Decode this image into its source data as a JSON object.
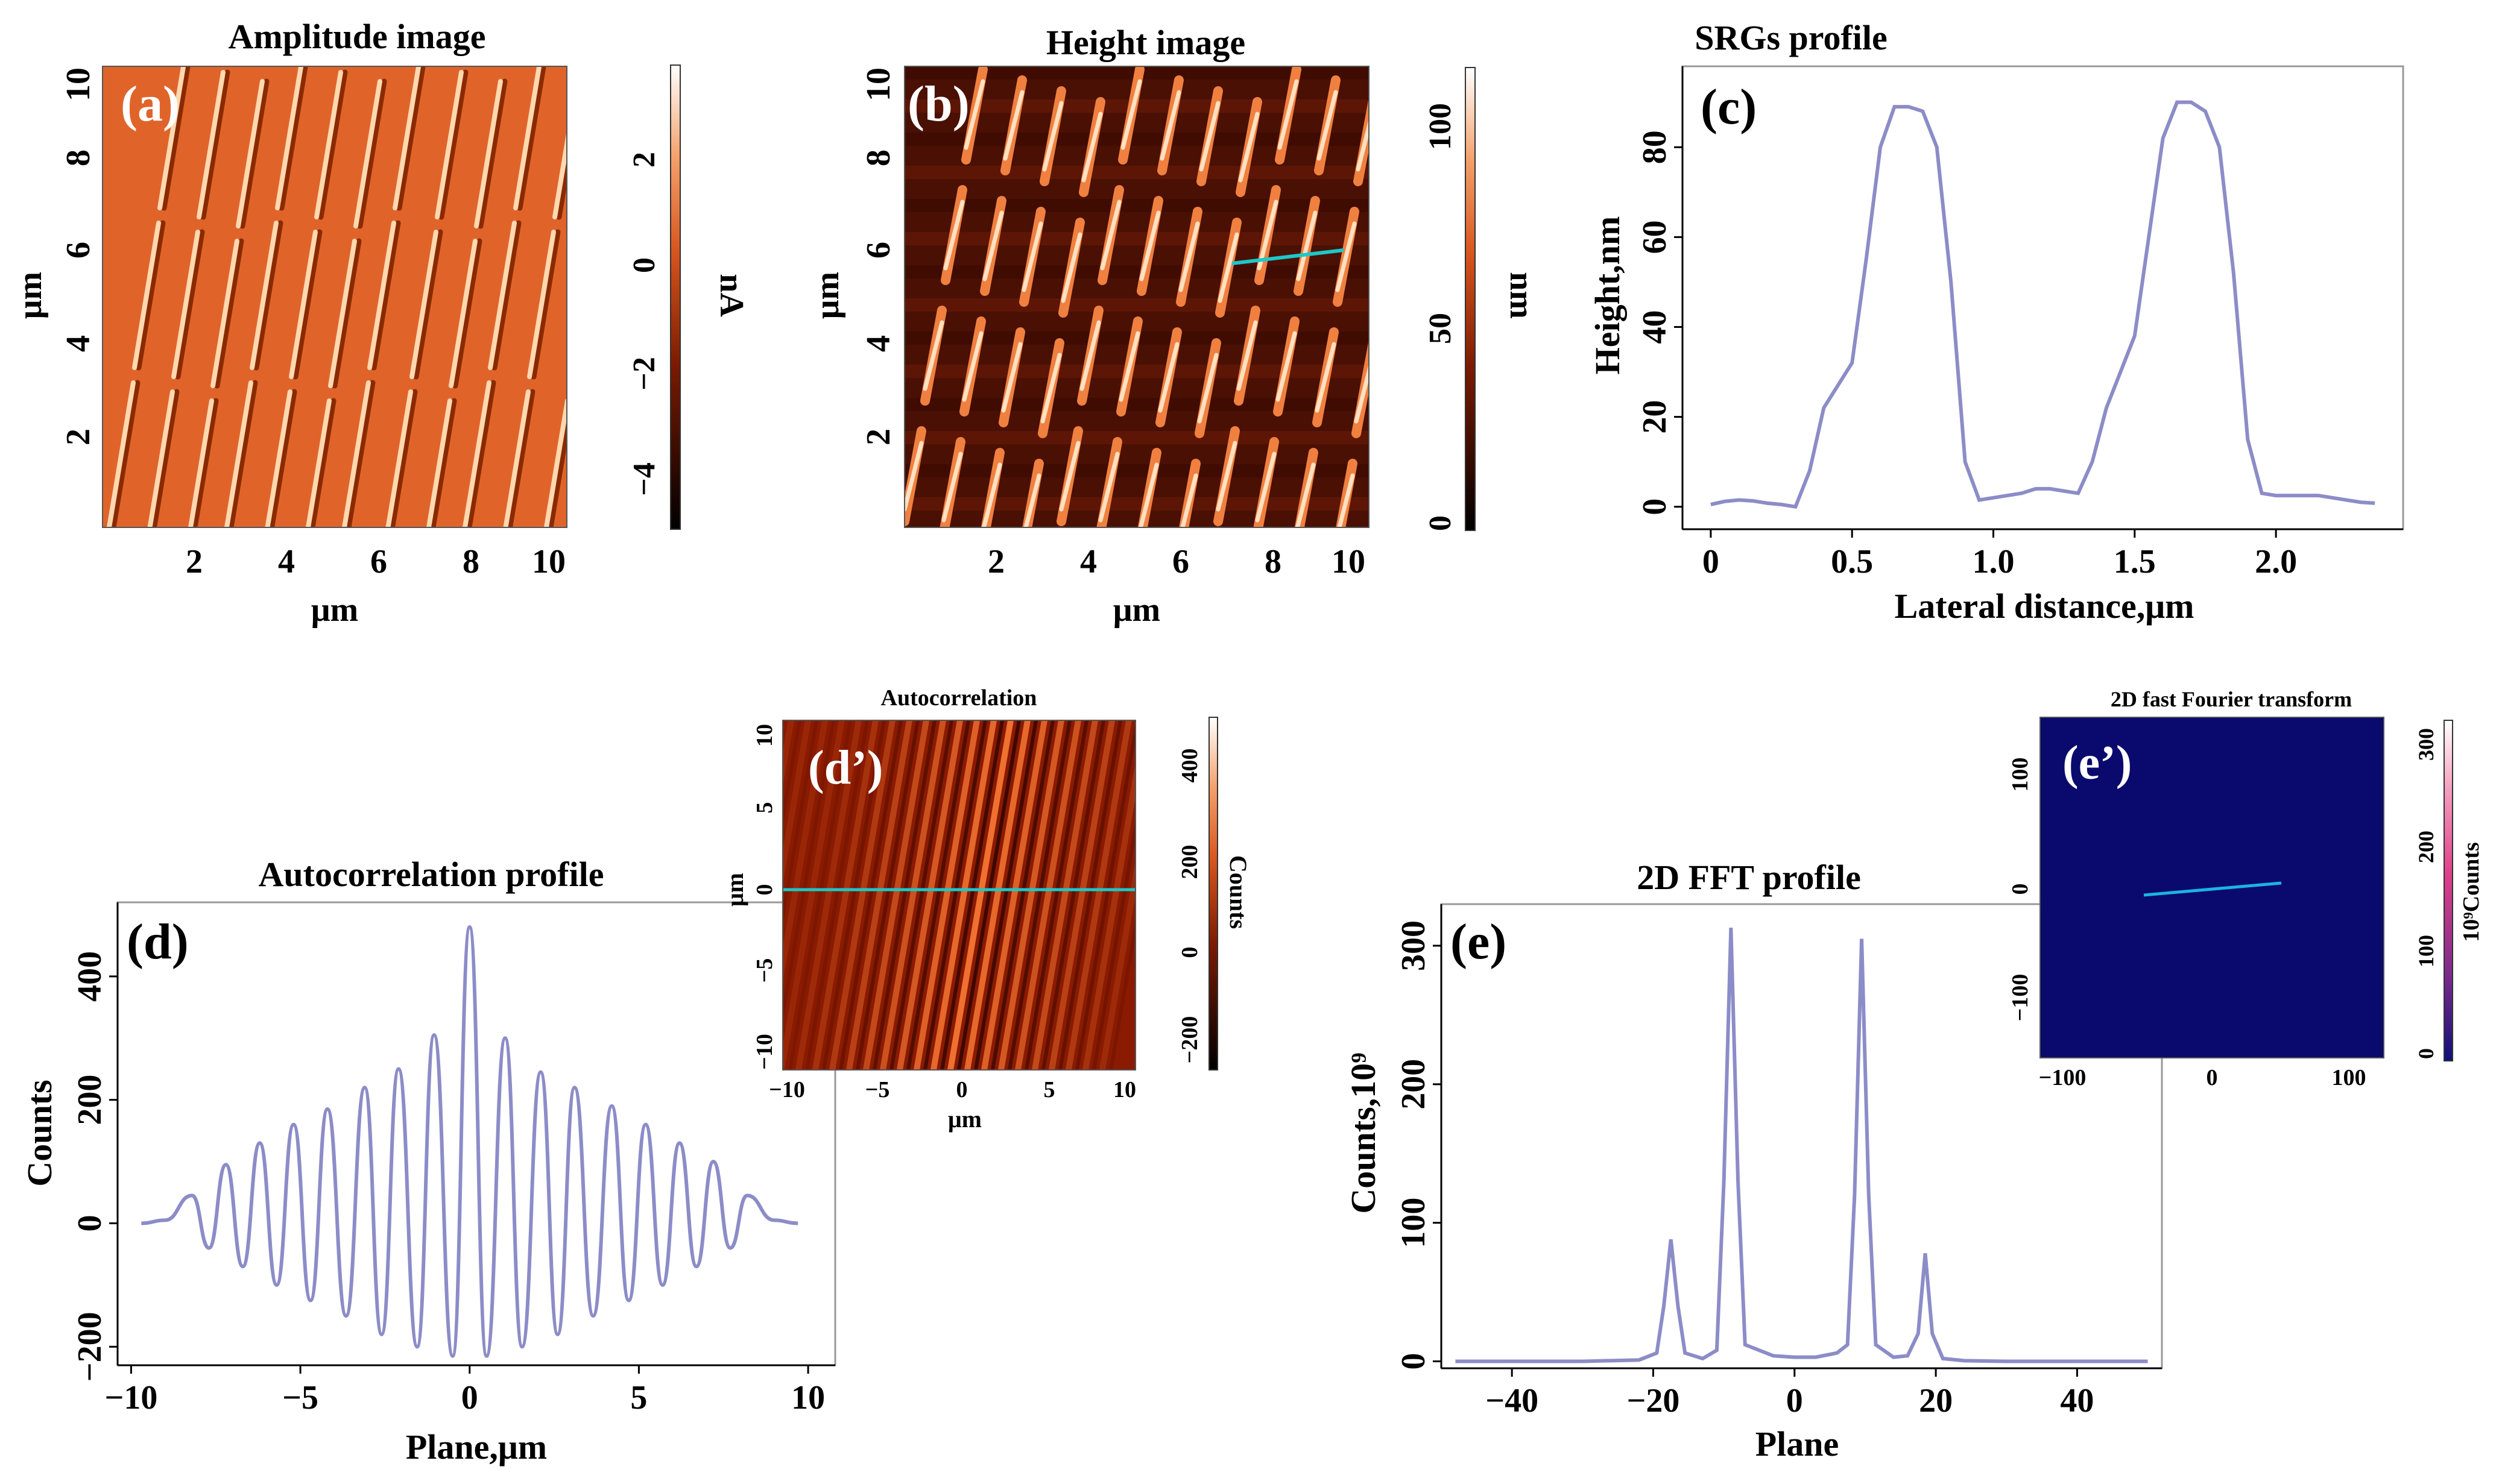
{
  "panels": {
    "a": {
      "label": "(a)",
      "title": "Amplitude image",
      "xlabel": "μm",
      "ylabel": "μm",
      "xticks": [
        "2",
        "4",
        "6",
        "8",
        "10"
      ],
      "yticks": [
        "2",
        "4",
        "6",
        "8",
        "10"
      ],
      "colorbar": {
        "label": "nA",
        "ticks": [
          "2",
          "0",
          "−2",
          "−4"
        ],
        "range": [
          -5,
          3.5
        ]
      }
    },
    "b": {
      "label": "(b)",
      "title": "Height image",
      "xlabel": "μm",
      "ylabel": "μm",
      "xticks": [
        "2",
        "4",
        "6",
        "8",
        "10"
      ],
      "yticks": [
        "2",
        "4",
        "6",
        "8",
        "10"
      ],
      "colorbar": {
        "label": "nm",
        "ticks": [
          "100",
          "50",
          "0"
        ],
        "range": [
          0,
          115
        ]
      }
    },
    "d2": {
      "label": "(d’)",
      "title": "Autocorrelation",
      "xlabel": "μm",
      "ylabel": "μm",
      "xticks": [
        "−10",
        "−5",
        "0",
        "5",
        "10"
      ],
      "yticks": [
        "10",
        "5",
        "0",
        "−5",
        "−10"
      ],
      "colorbar": {
        "label": "Counts",
        "ticks": [
          "400",
          "200",
          "0",
          "−200"
        ],
        "range": [
          -280,
          500
        ]
      }
    },
    "e2": {
      "label": "(e’)",
      "title": "2D fast Fourier transform",
      "xticks": [
        "−100",
        "0",
        "100"
      ],
      "yticks": [
        "100",
        "0",
        "−100"
      ],
      "colorbar": {
        "label": "10⁹Counts",
        "ticks": [
          "300",
          "200",
          "100",
          "0"
        ],
        "range": [
          0,
          320
        ]
      }
    }
  },
  "chart_data": [
    {
      "id": "c",
      "label": "(c)",
      "type": "line",
      "title": "SRGs profile",
      "xlabel": "Lateral distance,μm",
      "ylabel": "Height,nm",
      "xlim": [
        -0.1,
        2.45
      ],
      "ylim": [
        -5,
        98
      ],
      "grid": false,
      "xticks": [
        "0",
        "0.5",
        "1.0",
        "1.5",
        "2.0"
      ],
      "yticks": [
        "0",
        "20",
        "40",
        "60",
        "80"
      ],
      "color": "#8c8cc8",
      "x": [
        0,
        0.05,
        0.1,
        0.15,
        0.2,
        0.25,
        0.3,
        0.35,
        0.4,
        0.45,
        0.5,
        0.55,
        0.6,
        0.65,
        0.7,
        0.75,
        0.8,
        0.85,
        0.9,
        0.95,
        1.0,
        1.05,
        1.1,
        1.15,
        1.2,
        1.25,
        1.3,
        1.35,
        1.4,
        1.45,
        1.5,
        1.55,
        1.6,
        1.65,
        1.7,
        1.75,
        1.8,
        1.85,
        1.9,
        1.95,
        2.0,
        2.05,
        2.1,
        2.15,
        2.2,
        2.25,
        2.3,
        2.35
      ],
      "y": [
        0.5,
        1.2,
        1.5,
        1.3,
        0.8,
        0.5,
        0,
        8,
        22,
        27,
        32,
        55,
        80,
        89,
        89,
        88,
        80,
        50,
        10,
        1.5,
        2,
        2.5,
        3,
        4,
        4,
        3.5,
        3,
        10,
        22,
        30,
        38,
        60,
        82,
        90,
        90,
        88,
        80,
        52,
        15,
        3,
        2.5,
        2.5,
        2.5,
        2.5,
        2,
        1.5,
        1,
        0.8
      ]
    },
    {
      "id": "d",
      "label": "(d)",
      "type": "line",
      "title": "Autocorrelation profile",
      "xlabel": "Plane,μm",
      "ylabel": "Counts",
      "xlim": [
        -10.4,
        10.8
      ],
      "ylim": [
        -230,
        520
      ],
      "grid": false,
      "xticks": [
        "−10",
        "−5",
        "0",
        "5",
        "10"
      ],
      "yticks": [
        "−200",
        "0",
        "200",
        "400"
      ],
      "color": "#8c8cc8",
      "peaks": [
        [
          -8.2,
          45
        ],
        [
          -7.2,
          95
        ],
        [
          -6.2,
          130
        ],
        [
          -5.2,
          160
        ],
        [
          -4.2,
          185
        ],
        [
          -3.1,
          220
        ],
        [
          -2.1,
          250
        ],
        [
          -1.05,
          305
        ],
        [
          0,
          480
        ],
        [
          1.05,
          300
        ],
        [
          2.1,
          245
        ],
        [
          3.1,
          220
        ],
        [
          4.2,
          190
        ],
        [
          5.2,
          160
        ],
        [
          6.2,
          130
        ],
        [
          7.2,
          100
        ],
        [
          8.2,
          45
        ]
      ],
      "troughs": [
        [
          -7.7,
          -40
        ],
        [
          -6.7,
          -70
        ],
        [
          -5.7,
          -100
        ],
        [
          -4.7,
          -125
        ],
        [
          -3.65,
          -150
        ],
        [
          -2.6,
          -180
        ],
        [
          -1.55,
          -200
        ],
        [
          -0.5,
          -215
        ],
        [
          0.5,
          -215
        ],
        [
          1.55,
          -200
        ],
        [
          2.6,
          -180
        ],
        [
          3.65,
          -150
        ],
        [
          4.7,
          -125
        ],
        [
          5.7,
          -100
        ],
        [
          6.7,
          -70
        ],
        [
          7.7,
          -40
        ]
      ],
      "ends": [
        [
          -9.7,
          0
        ],
        [
          -9.0,
          5
        ],
        [
          9.0,
          5
        ],
        [
          9.7,
          0
        ]
      ]
    },
    {
      "id": "e",
      "label": "(e)",
      "type": "line",
      "title": "2D FFT profile",
      "xlabel": "Plane",
      "ylabel": "Counts,10⁹",
      "xlim": [
        -50,
        52
      ],
      "ylim": [
        -5,
        330
      ],
      "grid": false,
      "xticks": [
        "−40",
        "−20",
        "0",
        "20",
        "40"
      ],
      "yticks": [
        "0",
        "100",
        "200",
        "300"
      ],
      "color": "#8c8cc8",
      "x": [
        -48,
        -30,
        -22,
        -19.5,
        -18.5,
        -17.5,
        -16.5,
        -15.5,
        -13,
        -11,
        -10,
        -9,
        -8,
        -7,
        -5,
        -3,
        0,
        3,
        6,
        7.5,
        8.5,
        9.5,
        10.5,
        11.5,
        14,
        16,
        17.5,
        18.5,
        19.5,
        21,
        24,
        30,
        50
      ],
      "y": [
        0,
        0,
        1,
        6,
        40,
        88,
        40,
        6,
        2,
        8,
        130,
        313,
        130,
        12,
        8,
        4,
        3,
        3,
        6,
        12,
        120,
        305,
        120,
        12,
        3,
        4,
        20,
        78,
        20,
        2,
        0.5,
        0,
        0
      ]
    }
  ]
}
